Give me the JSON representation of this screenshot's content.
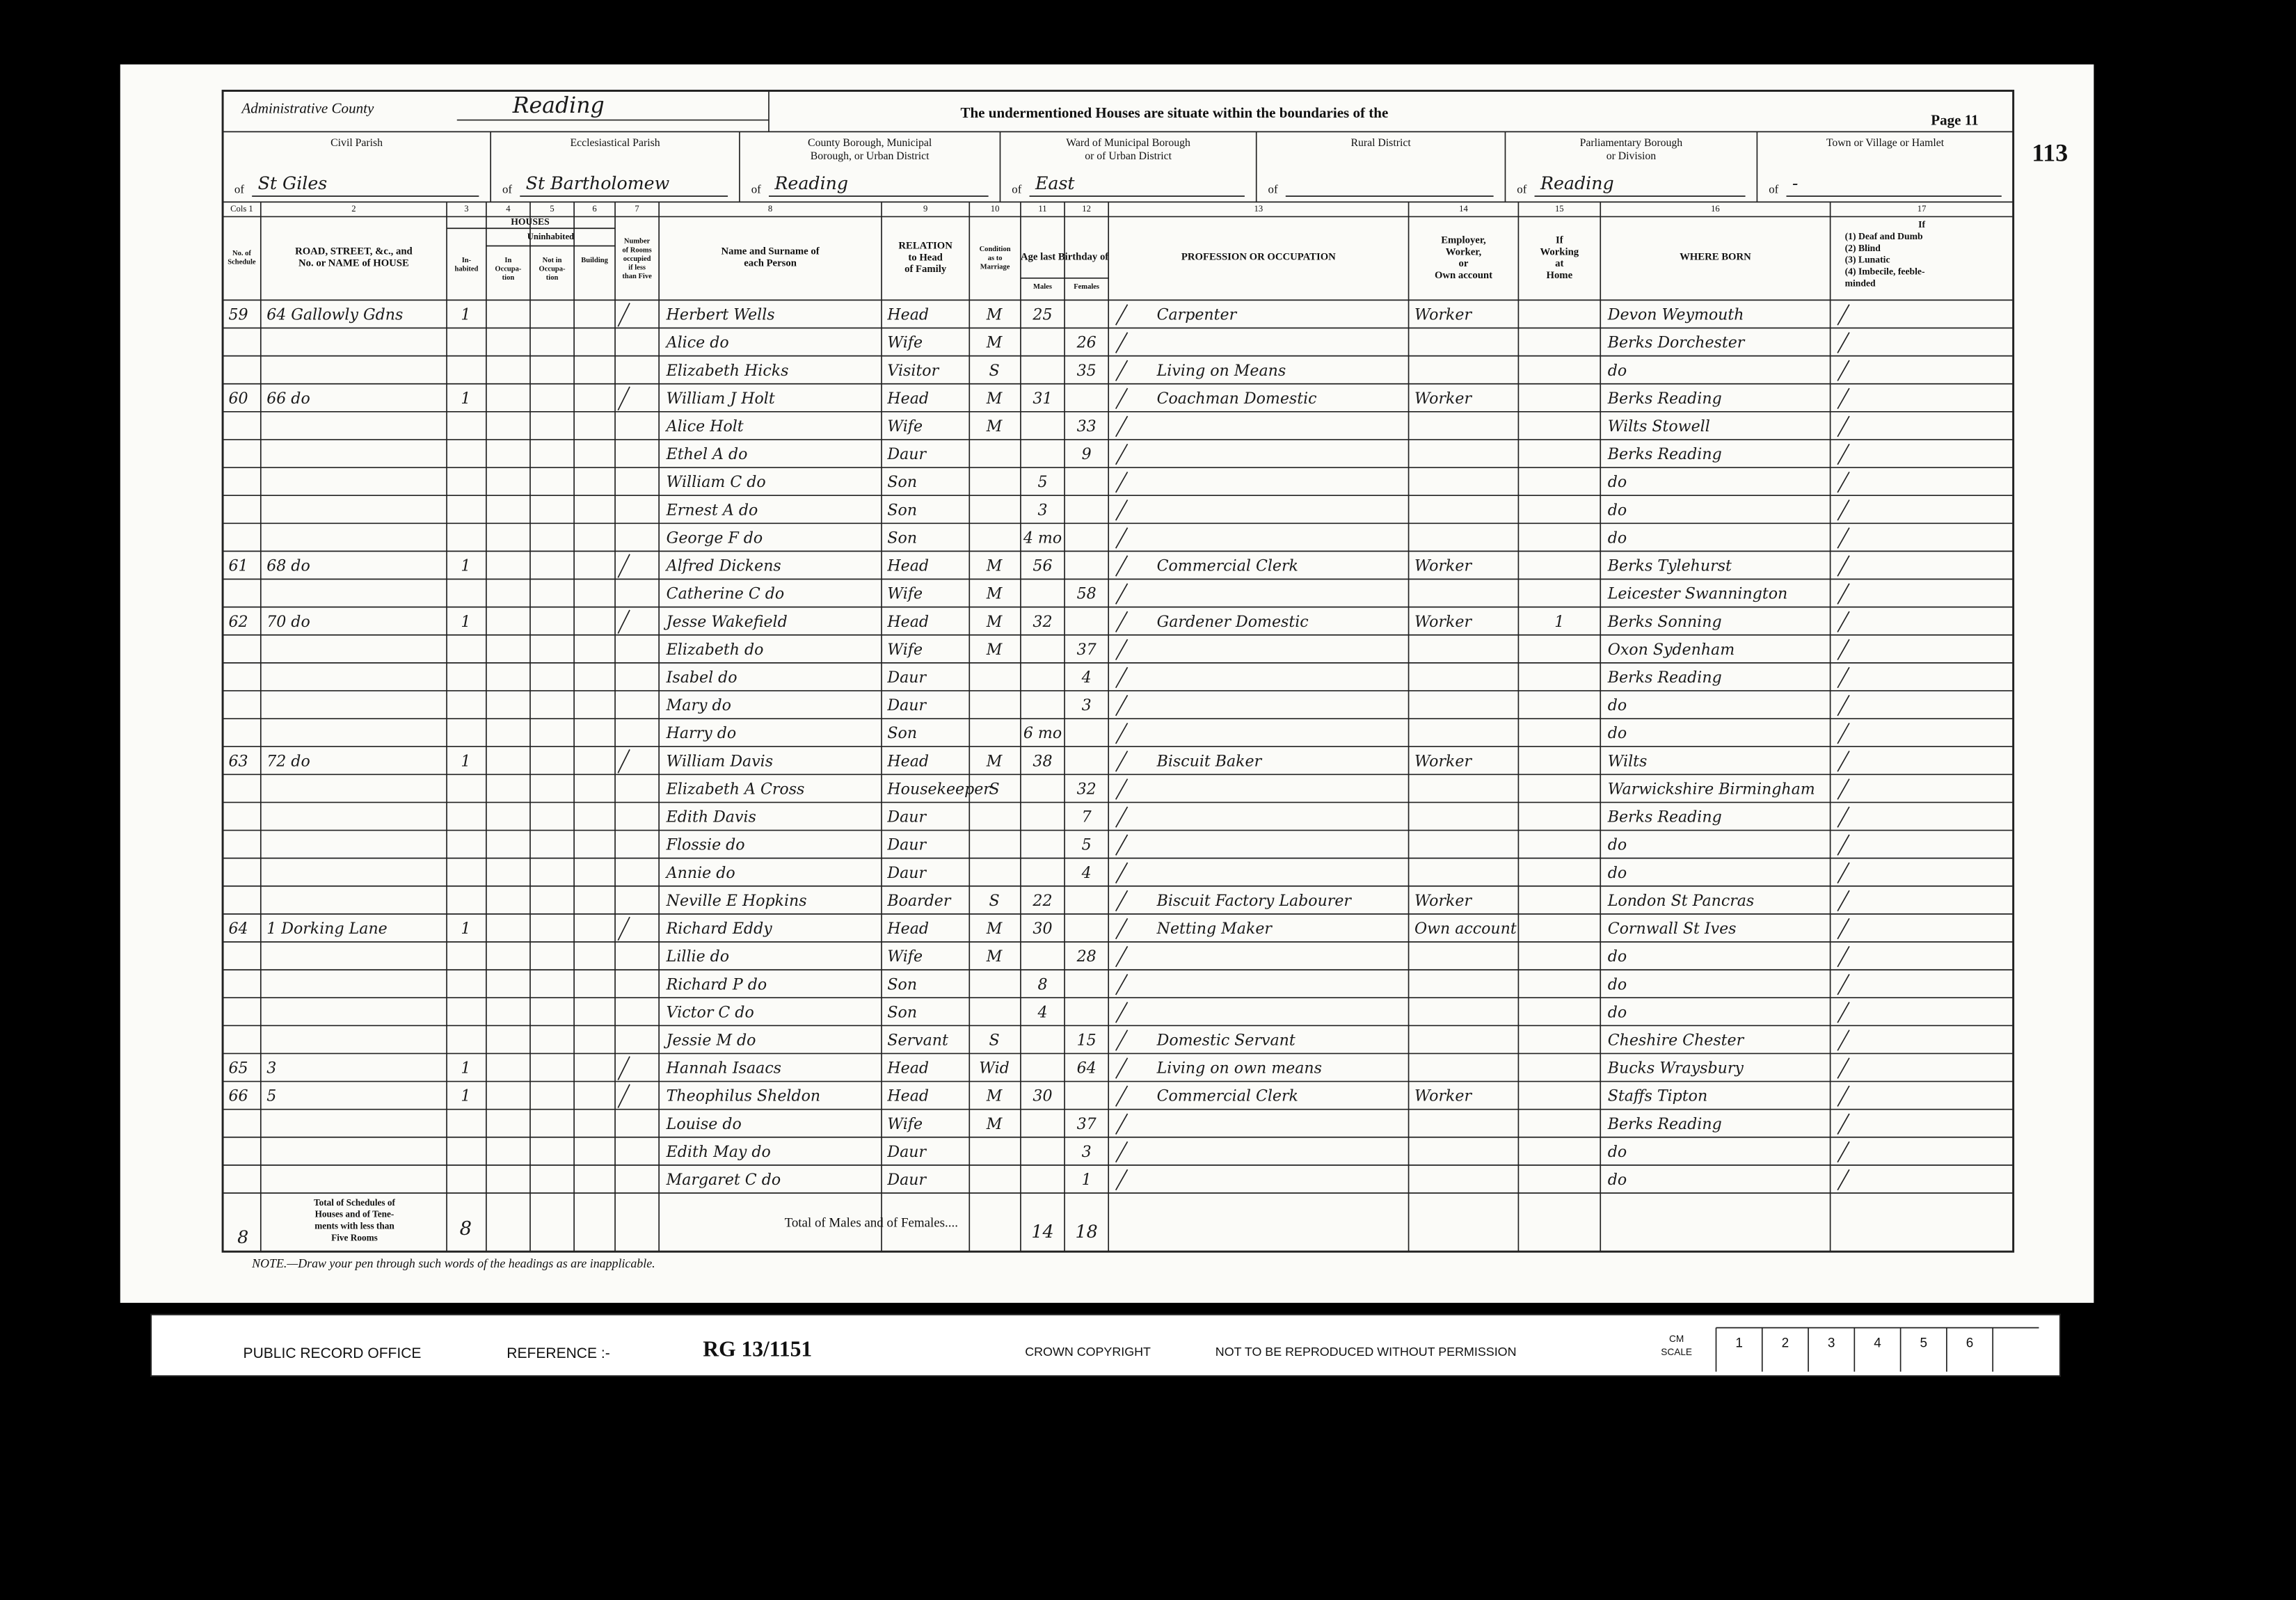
{
  "header": {
    "admin_label": "Administrative County",
    "admin_value": "Reading",
    "statement": "The undermentioned Houses are situate within the boundaries of the",
    "page": "Page 11",
    "folio": "113"
  },
  "districts": [
    {
      "label": [
        "Civil Parish"
      ],
      "of": "of",
      "value": "St Giles"
    },
    {
      "label": [
        "Ecclesiastical Parish"
      ],
      "of": "of",
      "value": "St Bartholomew"
    },
    {
      "label": [
        "County Borough, Municipal",
        "Borough, or Urban District"
      ],
      "of": "of",
      "value": "Reading"
    },
    {
      "label": [
        "Ward of Municipal Borough",
        "or of Urban District"
      ],
      "of": "of",
      "value": "East"
    },
    {
      "label": [
        "Rural District"
      ],
      "of": "of"
    },
    {
      "label": [
        "Parliamentary Borough",
        "or Division"
      ],
      "of": "of",
      "value": "Reading"
    },
    {
      "label": [
        "Town or Village or Hamlet"
      ],
      "of": "of",
      "value": "-"
    }
  ],
  "groups": {
    "houses": "HOUSES",
    "uninhabited": "Uninhabited",
    "age": "Age last Birthday of"
  },
  "columns": [
    {
      "number": "Cols 1",
      "heading": [
        "No. of",
        "Schedule"
      ]
    },
    {
      "number": "2",
      "heading": [
        "ROAD, STREET, &c., and",
        "No. or NAME of HOUSE"
      ]
    },
    {
      "number": "3",
      "heading": [
        "In-",
        "habited"
      ]
    },
    {
      "number": "4",
      "heading": [
        "In",
        "Occupa-",
        "tion"
      ]
    },
    {
      "number": "5",
      "heading": [
        "Not in",
        "Occupa-",
        "tion"
      ]
    },
    {
      "number": "6",
      "heading": [
        "Building"
      ]
    },
    {
      "number": "7",
      "heading": [
        "Number",
        "of Rooms",
        "occupied",
        "if less",
        "than Five"
      ]
    },
    {
      "number": "8",
      "heading": [
        "Name and Surname of",
        "each Person"
      ]
    },
    {
      "number": "9",
      "heading": [
        "RELATION",
        "to Head",
        "of Family"
      ]
    },
    {
      "number": "10",
      "heading": [
        "Condition",
        "as to",
        "Marriage"
      ]
    },
    {
      "number": "11",
      "heading": [
        "Males"
      ]
    },
    {
      "number": "12",
      "heading": [
        "Females"
      ]
    },
    {
      "number": "13",
      "heading": [
        "PROFESSION OR OCCUPATION"
      ]
    },
    {
      "number": "14",
      "heading": [
        "Employer,",
        "Worker,",
        "or",
        "Own account"
      ]
    },
    {
      "number": "15",
      "heading": [
        "If",
        "Working",
        "at",
        "Home"
      ]
    },
    {
      "number": "16",
      "heading": [
        "WHERE BORN"
      ]
    },
    {
      "number": "17",
      "heading": [
        "If",
        "(1) Deaf and Dumb",
        "(2) Blind",
        "(3) Lunatic",
        "(4) Imbecile, feeble-",
        "minded"
      ]
    }
  ],
  "rows": [
    {
      "sched": 59,
      "road": "64 Gallowly Gdns",
      "inhabited": 1,
      "name": "Herbert Wells",
      "relation": "Head",
      "condition": "M",
      "male": 25,
      "occupation": "Carpenter",
      "employer": "Worker",
      "born": "Devon Weymouth"
    },
    {
      "name": "Alice do",
      "relation": "Wife",
      "condition": "M",
      "female": 26,
      "born": "Berks Dorchester"
    },
    {
      "name": "Elizabeth Hicks",
      "relation": "Visitor",
      "condition": "S",
      "female": 35,
      "occupation": "Living on Means",
      "born": "do"
    },
    {
      "sched": 60,
      "road": "66 do",
      "inhabited": 1,
      "name": "William J Holt",
      "relation": "Head",
      "condition": "M",
      "male": 31,
      "occupation": "Coachman Domestic",
      "employer": "Worker",
      "born": "Berks Reading"
    },
    {
      "name": "Alice Holt",
      "relation": "Wife",
      "condition": "M",
      "female": 33,
      "born": "Wilts Stowell"
    },
    {
      "name": "Ethel A do",
      "relation": "Daur",
      "female": 9,
      "born": "Berks Reading"
    },
    {
      "name": "William C do",
      "relation": "Son",
      "male": 5,
      "born": "do"
    },
    {
      "name": "Ernest A do",
      "relation": "Son",
      "male": 3,
      "born": "do"
    },
    {
      "name": "George F do",
      "relation": "Son",
      "male": "4 mo",
      "born": "do"
    },
    {
      "sched": 61,
      "road": "68 do",
      "inhabited": 1,
      "name": "Alfred Dickens",
      "relation": "Head",
      "condition": "M",
      "male": 56,
      "occupation": "Commercial Clerk",
      "employer": "Worker",
      "born": "Berks Tylehurst"
    },
    {
      "name": "Catherine C do",
      "relation": "Wife",
      "condition": "M",
      "female": 58,
      "born": "Leicester Swannington"
    },
    {
      "sched": 62,
      "road": "70 do",
      "inhabited": 1,
      "name": "Jesse Wakefield",
      "relation": "Head",
      "condition": "M",
      "male": 32,
      "occupation": "Gardener Domestic",
      "employer": "Worker",
      "home": "1",
      "born": "Berks Sonning"
    },
    {
      "name": "Elizabeth do",
      "relation": "Wife",
      "condition": "M",
      "female": 37,
      "born": "Oxon Sydenham"
    },
    {
      "name": "Isabel do",
      "relation": "Daur",
      "female": 4,
      "born": "Berks Reading"
    },
    {
      "name": "Mary do",
      "relation": "Daur",
      "female": 3,
      "born": "do"
    },
    {
      "name": "Harry do",
      "relation": "Son",
      "male": "6 mo",
      "born": "do"
    },
    {
      "sched": 63,
      "road": "72 do",
      "inhabited": 1,
      "name": "William Davis",
      "relation": "Head",
      "condition": "M",
      "male": 38,
      "occupation": "Biscuit Baker",
      "employer": "Worker",
      "born": "Wilts"
    },
    {
      "name": "Elizabeth A Cross",
      "relation": "Housekeeper",
      "condition": "S",
      "female": 32,
      "born": "Warwickshire Birmingham"
    },
    {
      "name": "Edith Davis",
      "relation": "Daur",
      "female": 7,
      "born": "Berks Reading"
    },
    {
      "name": "Flossie do",
      "relation": "Daur",
      "female": 5,
      "born": "do"
    },
    {
      "name": "Annie do",
      "relation": "Daur",
      "female": 4,
      "born": "do"
    },
    {
      "name": "Neville E Hopkins",
      "relation": "Boarder",
      "condition": "S",
      "male": 22,
      "occupation": "Biscuit Factory Labourer",
      "employer": "Worker",
      "born": "London St Pancras"
    },
    {
      "sched": 64,
      "road": "1 Dorking Lane",
      "inhabited": 1,
      "name": "Richard Eddy",
      "relation": "Head",
      "condition": "M",
      "male": 30,
      "occupation": "Netting Maker",
      "employer": "Own account",
      "born": "Cornwall St Ives"
    },
    {
      "name": "Lillie do",
      "relation": "Wife",
      "condition": "M",
      "female": 28,
      "born": "do"
    },
    {
      "name": "Richard P do",
      "relation": "Son",
      "male": 8,
      "born": "do"
    },
    {
      "name": "Victor C do",
      "relation": "Son",
      "male": 4,
      "born": "do"
    },
    {
      "name": "Jessie M do",
      "relation": "Servant",
      "condition": "S",
      "female": 15,
      "occupation": "Domestic Servant",
      "born": "Cheshire Chester"
    },
    {
      "sched": 65,
      "road": "3",
      "inhabited": 1,
      "name": "Hannah Isaacs",
      "relation": "Head",
      "condition": "Wid",
      "female": 64,
      "occupation": "Living on own means",
      "born": "Bucks Wraysbury"
    },
    {
      "sched": 66,
      "road": "5",
      "inhabited": 1,
      "name": "Theophilus Sheldon",
      "relation": "Head",
      "condition": "M",
      "male": 30,
      "occupation": "Commercial Clerk",
      "employer": "Worker",
      "born": "Staffs Tipton"
    },
    {
      "name": "Louise do",
      "relation": "Wife",
      "condition": "M",
      "female": 37,
      "born": "Berks Reading"
    },
    {
      "name": "Edith May do",
      "relation": "Daur",
      "female": 3,
      "born": "do"
    },
    {
      "name": "Margaret C do",
      "relation": "Daur",
      "female": 1,
      "born": "do"
    }
  ],
  "totals": {
    "schedules": 8,
    "label": [
      "Total of Schedules of",
      "Houses and of Tene-",
      "ments with less than",
      "Five Rooms"
    ],
    "inhabited": 8,
    "persons_label": "Total of Males and of Females....",
    "males": 14,
    "females": 18
  },
  "note": "NOTE.—Draw your pen through such words of the headings as are inapplicable.",
  "strip": {
    "office": "PUBLIC RECORD OFFICE",
    "reference_label": "REFERENCE :-",
    "reference": "RG 13/1151",
    "copyright": "CROWN COPYRIGHT",
    "permission": "NOT TO BE REPRODUCED WITHOUT PERMISSION",
    "scale_label": [
      "CM",
      "SCALE"
    ],
    "scale": [
      1,
      2,
      3,
      4,
      5,
      6
    ]
  }
}
